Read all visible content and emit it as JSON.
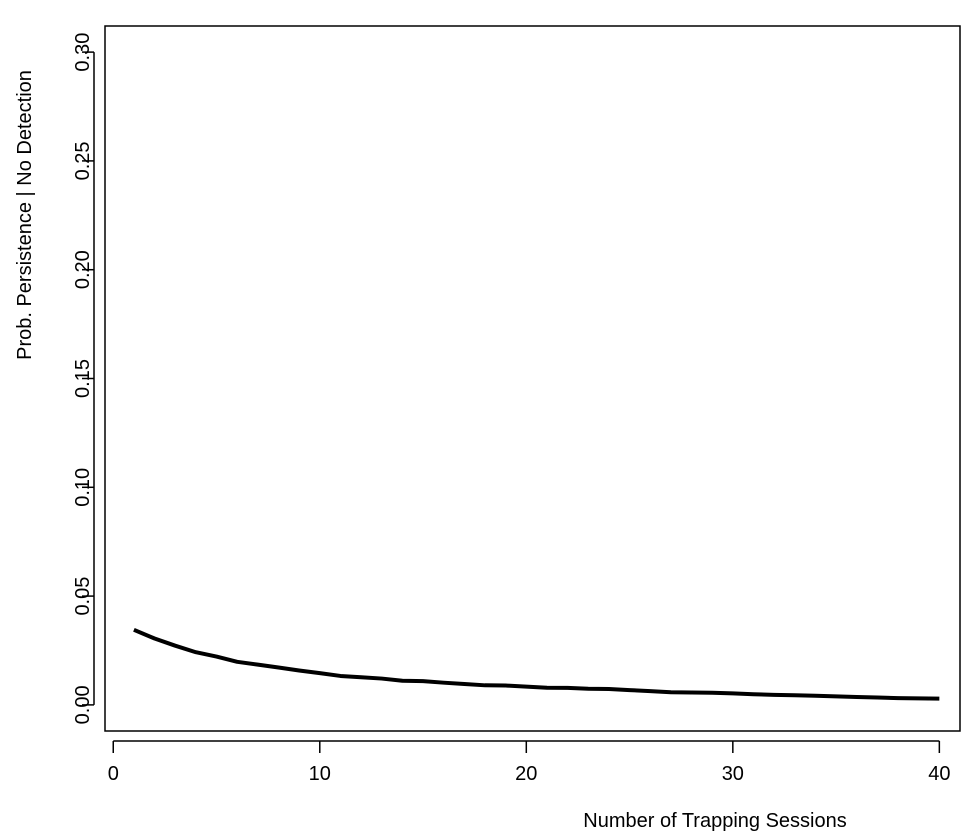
{
  "chart_data": {
    "type": "line",
    "xlabel": "Number of Trapping Sessions",
    "ylabel": "Prob. Persistence | No Detection",
    "xlim": [
      -0.4,
      41.0
    ],
    "ylim": [
      -0.012,
      0.312
    ],
    "xticks": [
      0,
      10,
      20,
      30,
      40
    ],
    "xtick_labels": [
      "0",
      "10",
      "20",
      "30",
      "40"
    ],
    "yticks": [
      0.0,
      0.05,
      0.1,
      0.15,
      0.2,
      0.25,
      0.3
    ],
    "ytick_labels": [
      "0.00",
      "0.05",
      "0.10",
      "0.15",
      "0.20",
      "0.25",
      "0.30"
    ],
    "grid": false,
    "series": [
      {
        "color": "#000000",
        "x": [
          1,
          2,
          3,
          4,
          5,
          6,
          7,
          8,
          9,
          10,
          11,
          12,
          13,
          14,
          15,
          16,
          17,
          18,
          19,
          20,
          21,
          22,
          23,
          24,
          25,
          26,
          27,
          28,
          29,
          30,
          31,
          32,
          33,
          34,
          35,
          36,
          37,
          38,
          39,
          40
        ],
        "y": [
          0.0345,
          0.0305,
          0.0272,
          0.0242,
          0.0222,
          0.0198,
          0.0185,
          0.0172,
          0.0158,
          0.0146,
          0.0133,
          0.0127,
          0.0121,
          0.0111,
          0.0109,
          0.0102,
          0.0096,
          0.009,
          0.0089,
          0.0084,
          0.0079,
          0.0078,
          0.0074,
          0.0073,
          0.0068,
          0.0063,
          0.0058,
          0.0057,
          0.0056,
          0.0053,
          0.0049,
          0.0046,
          0.0044,
          0.0042,
          0.0039,
          0.0036,
          0.0034,
          0.0031,
          0.003,
          0.0029
        ]
      }
    ]
  }
}
